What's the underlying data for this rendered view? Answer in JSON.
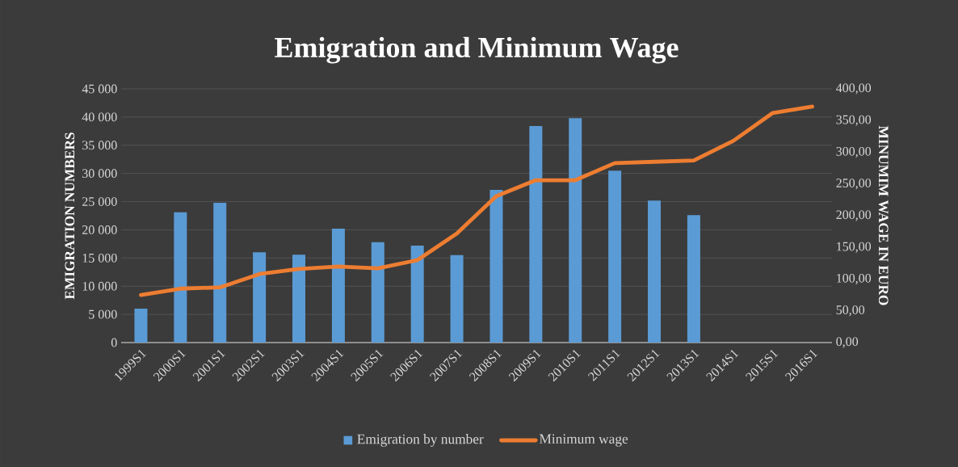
{
  "chart_data": {
    "type": "bar",
    "title": "Emigration and Minimum Wage",
    "ylabel": "EMIGRATION NUMBERS",
    "y2label": "MINUMIM WAGE IN EURO",
    "categories": [
      "1999S1",
      "2000S1",
      "2001S1",
      "2002S1",
      "2003S1",
      "2004S1",
      "2005S1",
      "2006S1",
      "2007S1",
      "2008S1",
      "2009S1",
      "2010S1",
      "2011S1",
      "2012S1",
      "2013S1",
      "2014S1",
      "2015S1",
      "2016S1"
    ],
    "series": [
      {
        "name": "Emigration by number",
        "color": "#5b9bd5",
        "values": [
          6000,
          23100,
          24800,
          16000,
          15600,
          20200,
          17800,
          17200,
          15500,
          27100,
          38400,
          39800,
          30500,
          25200,
          22600,
          null,
          null,
          null
        ]
      },
      {
        "name": "Minimum wage",
        "type": "line",
        "axis": "y2",
        "color": "#ed7d31",
        "values": [
          75,
          85,
          87,
          108,
          116,
          120,
          117,
          130,
          172,
          231,
          256,
          256,
          283,
          285,
          287,
          318,
          362,
          372
        ]
      }
    ],
    "ylim": [
      0,
      45000
    ],
    "yticks": [
      0,
      {
        "value": 5000,
        "label": "5 000"
      },
      {
        "value": 10000,
        "label": "10 000"
      },
      {
        "value": 15000,
        "label": "15 000"
      },
      {
        "value": 20000,
        "label": "20 000"
      },
      {
        "value": 25000,
        "label": "25 000"
      },
      {
        "value": 30000,
        "label": "30 000"
      },
      {
        "value": 35000,
        "label": "35 000"
      },
      {
        "value": 40000,
        "label": "40 000"
      },
      {
        "value": 45000,
        "label": "45 000"
      }
    ],
    "y2lim": [
      0,
      400
    ],
    "y2ticks": [
      {
        "value": 0,
        "label": "0,00"
      },
      {
        "value": 50,
        "label": "50,00"
      },
      {
        "value": 100,
        "label": "100,00"
      },
      {
        "value": 150,
        "label": "150,00"
      },
      {
        "value": 200,
        "label": "200,00"
      },
      {
        "value": 250,
        "label": "250,00"
      },
      {
        "value": 300,
        "label": "300,00"
      },
      {
        "value": 350,
        "label": "350,00"
      },
      {
        "value": 400,
        "label": "400,00"
      }
    ],
    "grid": "y",
    "legend": "bottom"
  }
}
